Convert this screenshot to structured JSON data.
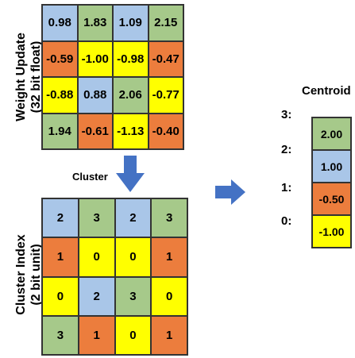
{
  "labels": {
    "weight_update_line1": "Weight Update",
    "weight_update_line2": "(32 bit float)",
    "cluster_index_line1": "Cluster Index",
    "cluster_index_line2": "(2 bit unit)",
    "cluster": "Cluster",
    "centroid": "Centroid"
  },
  "colors": {
    "blue": "#a9c6e8",
    "green": "#a6c98a",
    "orange": "#ec7d3d",
    "yellow": "#ffff00",
    "arrow": "#4472c4"
  },
  "weights": [
    [
      "0.98",
      "1.83",
      "1.09",
      "2.15"
    ],
    [
      "-0.59",
      "-1.00",
      "-0.98",
      "-0.47"
    ],
    [
      "-0.88",
      "0.88",
      "2.06",
      "-0.77"
    ],
    [
      "1.94",
      "-0.61",
      "-1.13",
      "-0.40"
    ]
  ],
  "weight_colors": [
    [
      "blue",
      "green",
      "blue",
      "green"
    ],
    [
      "orange",
      "yellow",
      "yellow",
      "orange"
    ],
    [
      "yellow",
      "blue",
      "green",
      "yellow"
    ],
    [
      "green",
      "orange",
      "yellow",
      "orange"
    ]
  ],
  "cluster_index": [
    [
      "2",
      "3",
      "2",
      "3"
    ],
    [
      "1",
      "0",
      "0",
      "1"
    ],
    [
      "0",
      "2",
      "3",
      "0"
    ],
    [
      "3",
      "1",
      "0",
      "1"
    ]
  ],
  "index_colors": [
    [
      "blue",
      "green",
      "blue",
      "green"
    ],
    [
      "orange",
      "yellow",
      "yellow",
      "orange"
    ],
    [
      "yellow",
      "blue",
      "green",
      "yellow"
    ],
    [
      "green",
      "orange",
      "yellow",
      "orange"
    ]
  ],
  "centroids": [
    {
      "index": "3:",
      "value": "2.00",
      "color": "green"
    },
    {
      "index": "2:",
      "value": "1.00",
      "color": "blue"
    },
    {
      "index": "1:",
      "value": "-0.50",
      "color": "orange"
    },
    {
      "index": "0:",
      "value": "-1.00",
      "color": "yellow"
    }
  ]
}
